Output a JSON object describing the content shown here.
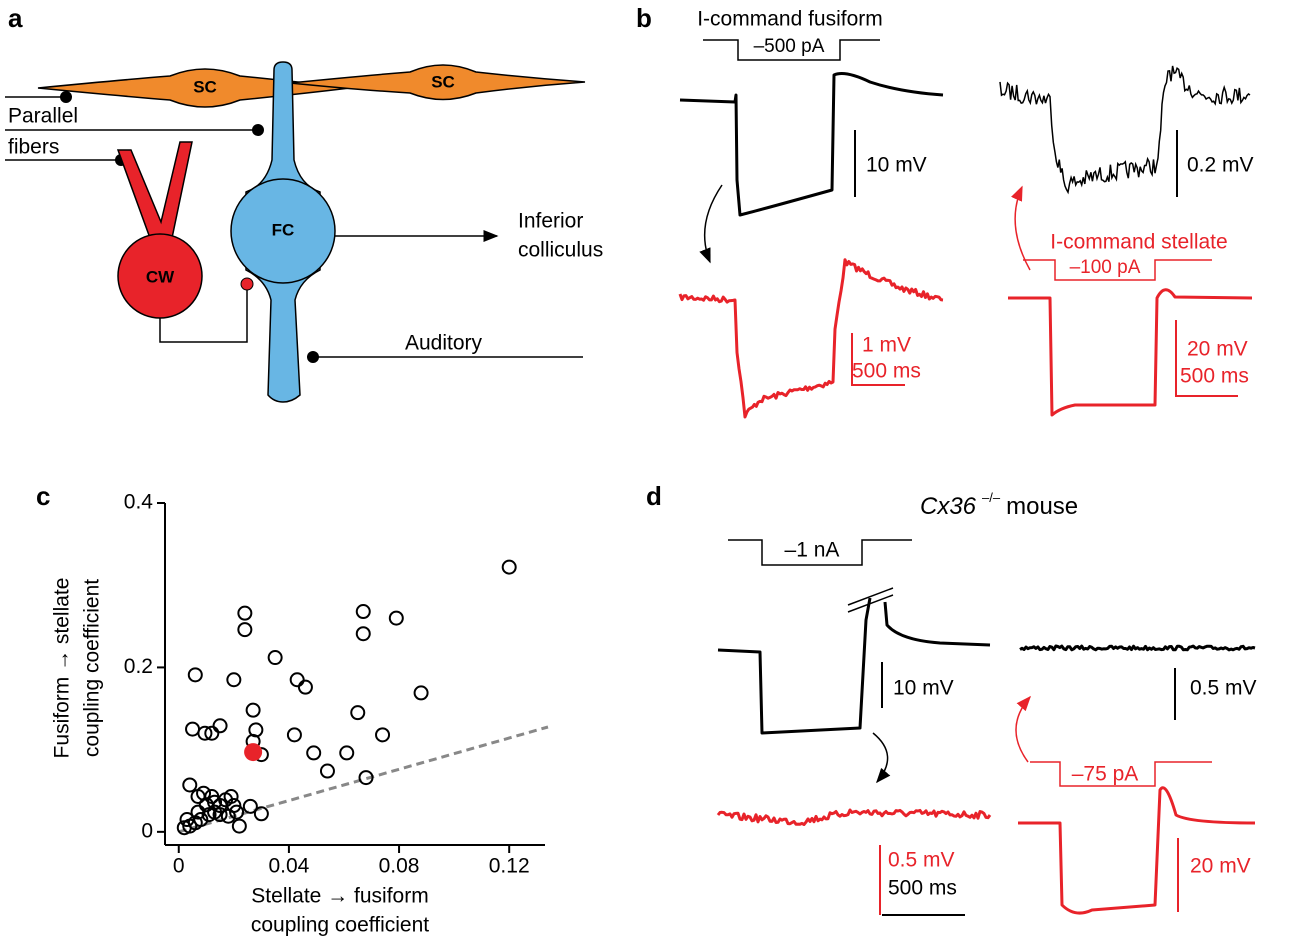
{
  "panel_labels": [
    "a",
    "b",
    "c",
    "d"
  ],
  "panel_a": {
    "cells": [
      "SC",
      "SC",
      "FC",
      "CW"
    ],
    "inputs": [
      "Parallel",
      "fibers",
      "Auditory"
    ],
    "output": [
      "Inferior",
      "colliculus"
    ]
  },
  "panel_b": {
    "fusiform_command": "I-command fusiform",
    "fusiform_current": "–500 pA",
    "fusiform_scale": "10 mV",
    "stellate_response_scale": "1 mV",
    "stellate_response_time": "500 ms",
    "stellate_command": "I-command stellate",
    "stellate_current": "–100 pA",
    "fusiform_response_scale": "0.2 mV",
    "stellate_scale": "20 mV",
    "stellate_time": "500 ms"
  },
  "panel_d": {
    "title": {
      "genotype": "Cx36",
      "superscript": "–/–",
      "subject": "mouse"
    },
    "fusiform_current": "–1 nA",
    "fusiform_scale": "10 mV",
    "fusiform_response_scale": "0.5 mV",
    "stellate_response_scale": "0.5 mV",
    "stellate_response_time": "500 ms",
    "stellate_current": "–75 pA",
    "stellate_scale": "20 mV"
  },
  "chart_data": {
    "type": "scatter",
    "x_label": [
      "Stellate → fusiform",
      "coupling coefficient"
    ],
    "y_label": [
      "Fusiform → stellate",
      "coupling coefficient"
    ],
    "xlim": [
      -0.005,
      0.133
    ],
    "ylim": [
      -0.016,
      0.4
    ],
    "xticks": [
      0,
      0.04,
      0.08,
      0.12
    ],
    "yticks": [
      0,
      0.2,
      0.4
    ],
    "series": [
      {
        "color": "#000000",
        "marker": "open",
        "x": [
          0.12,
          0.079,
          0.067,
          0.067,
          0.024,
          0.024,
          0.035,
          0.02,
          0.006,
          0.043,
          0.046,
          0.088,
          0.027,
          0.065,
          0.005,
          0.015,
          0.0095,
          0.012,
          0.028,
          0.027,
          0.042,
          0.074,
          0.049,
          0.061,
          0.054,
          0.03,
          0.068,
          0.004,
          0.007,
          0.009,
          0.012,
          0.01,
          0.013,
          0.015,
          0.017,
          0.019,
          0.02,
          0.015,
          0.007,
          0.003,
          0.002,
          0.004,
          0.006,
          0.008,
          0.011,
          0.013,
          0.018,
          0.021,
          0.022,
          0.026,
          0.03
        ],
        "values": [
          0.322,
          0.26,
          0.268,
          0.241,
          0.266,
          0.246,
          0.212,
          0.185,
          0.191,
          0.185,
          0.176,
          0.169,
          0.148,
          0.145,
          0.125,
          0.129,
          0.12,
          0.12,
          0.124,
          0.11,
          0.118,
          0.118,
          0.096,
          0.096,
          0.074,
          0.094,
          0.066,
          0.057,
          0.043,
          0.047,
          0.043,
          0.033,
          0.036,
          0.032,
          0.039,
          0.043,
          0.032,
          0.021,
          0.024,
          0.015,
          0.005,
          0.007,
          0.011,
          0.015,
          0.021,
          0.024,
          0.019,
          0.024,
          0.007,
          0.031,
          0.022
        ]
      },
      {
        "color": "#e8232a",
        "marker": "filled",
        "x": [
          0.027
        ],
        "values": [
          0.097
        ]
      }
    ]
  }
}
